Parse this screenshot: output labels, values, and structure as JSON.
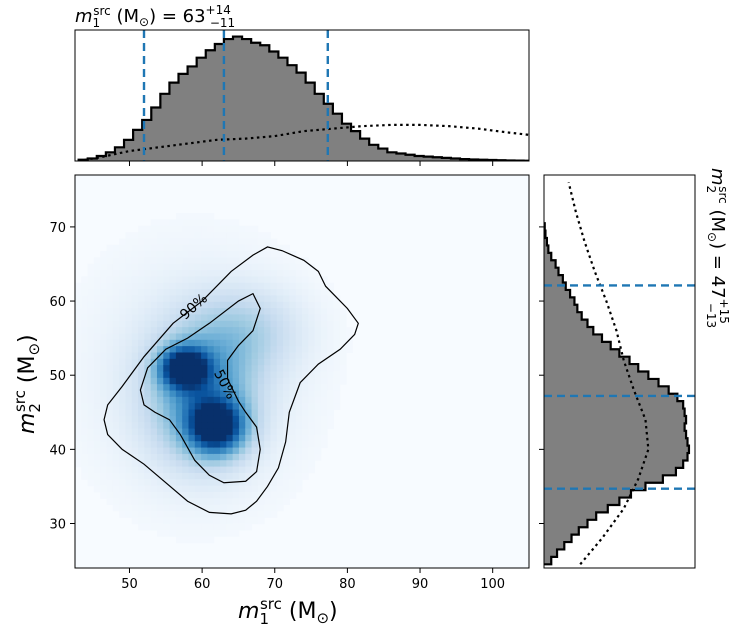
{
  "chart_data": {
    "type": "corner",
    "title_top": {
      "var": "m",
      "sub": "1",
      "sup": "src",
      "unit": " (M",
      "sun": "⊙",
      "close": ")",
      "eq": " = 63",
      "plus": "+14",
      "minus": "−11"
    },
    "title_right": {
      "var": "m",
      "sub": "2",
      "sup": "src",
      "unit": " (M",
      "sun": "⊙",
      "close": ")",
      "eq": " = 47",
      "plus": "+15",
      "minus": "−13"
    },
    "xlabel": {
      "var": "m",
      "sub": "1",
      "sup": "src",
      "unit": " (M",
      "sun": "⊙",
      "close": ")"
    },
    "ylabel": {
      "var": "m",
      "sub": "2",
      "sup": "src",
      "unit": " (M",
      "sun": "⊙",
      "close": ")"
    },
    "xlim": [
      42.5,
      105
    ],
    "ylim": [
      24,
      77
    ],
    "xticks": [
      "50",
      "60",
      "70",
      "80",
      "90",
      "100"
    ],
    "yticks": [
      "30",
      "40",
      "50",
      "60",
      "70"
    ],
    "m1_quantiles": [
      52,
      63,
      77.3
    ],
    "m2_quantiles": [
      34.7,
      47.2,
      62.1
    ],
    "m1_hist": {
      "edges_start": 43,
      "bin": 1.25,
      "max": 1.0,
      "values": [
        0.01,
        0.02,
        0.04,
        0.07,
        0.11,
        0.17,
        0.25,
        0.33,
        0.43,
        0.54,
        0.63,
        0.7,
        0.76,
        0.83,
        0.89,
        0.94,
        0.98,
        1.0,
        0.98,
        0.95,
        0.93,
        0.88,
        0.83,
        0.77,
        0.71,
        0.63,
        0.54,
        0.46,
        0.38,
        0.3,
        0.24,
        0.18,
        0.13,
        0.1,
        0.07,
        0.06,
        0.05,
        0.04,
        0.035,
        0.03,
        0.025,
        0.02,
        0.015,
        0.012,
        0.01,
        0.008,
        0.006,
        0.004,
        0.003,
        0.002
      ]
    },
    "m1_prior": {
      "x": [
        43,
        46,
        50,
        54,
        58,
        62,
        66,
        70,
        74,
        78,
        82,
        86,
        90,
        94,
        98,
        102,
        105
      ],
      "y": [
        0.0,
        0.03,
        0.08,
        0.11,
        0.14,
        0.17,
        0.18,
        0.2,
        0.24,
        0.26,
        0.28,
        0.29,
        0.29,
        0.28,
        0.26,
        0.23,
        0.21
      ]
    },
    "m2_hist": {
      "edges_start": 24.5,
      "bin": 1.0,
      "max": 1.0,
      "values": [
        0.05,
        0.09,
        0.14,
        0.19,
        0.24,
        0.3,
        0.36,
        0.44,
        0.52,
        0.6,
        0.7,
        0.82,
        0.91,
        0.96,
        0.99,
        1.0,
        0.99,
        0.98,
        0.97,
        0.98,
        0.97,
        0.96,
        0.92,
        0.86,
        0.79,
        0.72,
        0.65,
        0.59,
        0.52,
        0.46,
        0.4,
        0.34,
        0.3,
        0.26,
        0.23,
        0.21,
        0.18,
        0.15,
        0.13,
        0.1,
        0.08,
        0.05,
        0.03,
        0.02,
        0.01,
        0.005
      ]
    },
    "m2_prior": {
      "y": [
        24.5,
        28,
        32,
        36,
        40,
        44,
        48,
        52,
        56,
        60,
        64,
        68,
        72,
        76
      ],
      "x": [
        0.25,
        0.4,
        0.55,
        0.65,
        0.72,
        0.7,
        0.62,
        0.55,
        0.5,
        0.43,
        0.35,
        0.28,
        0.22,
        0.17
      ]
    },
    "contours": [
      {
        "label": "90%",
        "points": [
          [
            46.5,
            44
          ],
          [
            47,
            42
          ],
          [
            49,
            40
          ],
          [
            52,
            38
          ],
          [
            55,
            35.5
          ],
          [
            58,
            33
          ],
          [
            61,
            31.5
          ],
          [
            64,
            31.3
          ],
          [
            66,
            31.8
          ],
          [
            67.5,
            33
          ],
          [
            69,
            35
          ],
          [
            70.5,
            37.5
          ],
          [
            71.5,
            41
          ],
          [
            72,
            45
          ],
          [
            73.5,
            49
          ],
          [
            76,
            51.5
          ],
          [
            79,
            53.5
          ],
          [
            81,
            55.5
          ],
          [
            81.5,
            57
          ],
          [
            80,
            59
          ],
          [
            77,
            62
          ],
          [
            76,
            64
          ],
          [
            74,
            65.5
          ],
          [
            71,
            66.8
          ],
          [
            69,
            67.3
          ],
          [
            67,
            66.2
          ],
          [
            64,
            64
          ],
          [
            60,
            60
          ],
          [
            56,
            57
          ],
          [
            52,
            52.5
          ],
          [
            49,
            48.5
          ],
          [
            47,
            46
          ]
        ]
      },
      {
        "label": "50%",
        "points": [
          [
            51.5,
            48
          ],
          [
            52,
            46
          ],
          [
            53.5,
            45
          ],
          [
            55.5,
            44
          ],
          [
            57,
            42
          ],
          [
            59,
            38.5
          ],
          [
            61,
            36.5
          ],
          [
            63,
            35.5
          ],
          [
            66,
            35.7
          ],
          [
            67.5,
            37
          ],
          [
            68,
            40
          ],
          [
            67.5,
            43
          ],
          [
            66,
            45
          ],
          [
            65,
            46.5
          ],
          [
            64.5,
            47.5
          ],
          [
            63.5,
            49.5
          ],
          [
            63.5,
            52
          ],
          [
            65,
            54
          ],
          [
            67,
            56
          ],
          [
            68,
            59
          ],
          [
            67,
            61
          ],
          [
            65,
            60
          ],
          [
            61,
            57
          ],
          [
            58,
            55
          ],
          [
            55,
            53.5
          ],
          [
            52.5,
            51
          ]
        ]
      }
    ],
    "density_peaks": [
      {
        "x": 57.5,
        "y": 51,
        "sx": 2.3,
        "sy": 1.9,
        "w": 1.0
      },
      {
        "x": 62,
        "y": 43,
        "sx": 2.7,
        "sy": 2.5,
        "w": 0.95
      },
      {
        "x": 60,
        "y": 47,
        "sx": 5,
        "sy": 6,
        "w": 0.55
      },
      {
        "x": 66,
        "y": 56,
        "sx": 5.5,
        "sy": 4,
        "w": 0.25
      },
      {
        "x": 59,
        "y": 50,
        "sx": 10,
        "sy": 11,
        "w": 0.15
      }
    ],
    "colors": {
      "hist_fill": "#808080",
      "quantile": "#1f77b4",
      "density": "Blues",
      "contour": "#000000"
    }
  }
}
